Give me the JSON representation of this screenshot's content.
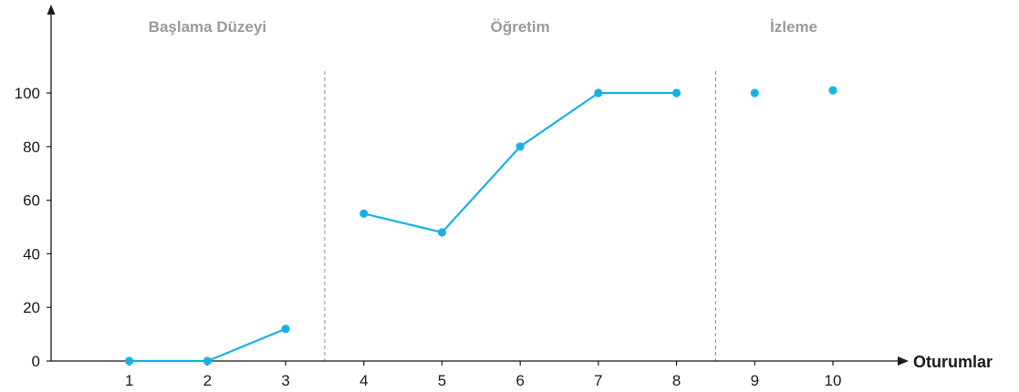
{
  "chart_data": {
    "type": "line",
    "xlabel": "Oturumlar",
    "ylabel": "",
    "x_ticks": [
      "1",
      "2",
      "3",
      "4",
      "5",
      "6",
      "7",
      "8",
      "9",
      "10"
    ],
    "y_ticks": [
      "0",
      "20",
      "40",
      "60",
      "80",
      "100"
    ],
    "xlim": [
      0,
      10
    ],
    "ylim": [
      0,
      100
    ],
    "grid": false,
    "series_color": "#1ab0e6",
    "phases": [
      {
        "label": "Başlama Düzeyi",
        "sessions": [
          1,
          3
        ]
      },
      {
        "label": "Öğretim",
        "sessions": [
          4,
          8
        ]
      },
      {
        "label": "İzleme",
        "sessions": [
          9,
          10
        ]
      }
    ],
    "phase_dividers": [
      3.5,
      8.5
    ],
    "segments": [
      {
        "phase": "Başlama Düzeyi",
        "points": [
          {
            "x": 1,
            "y": 0
          },
          {
            "x": 2,
            "y": 0
          },
          {
            "x": 3,
            "y": 12
          }
        ]
      },
      {
        "phase": "Öğretim",
        "points": [
          {
            "x": 4,
            "y": 55
          },
          {
            "x": 5,
            "y": 48
          },
          {
            "x": 6,
            "y": 80
          },
          {
            "x": 7,
            "y": 100
          },
          {
            "x": 8,
            "y": 100
          }
        ]
      },
      {
        "phase": "İzleme",
        "connected": false,
        "points": [
          {
            "x": 9,
            "y": 100
          },
          {
            "x": 10,
            "y": 101
          }
        ]
      }
    ]
  }
}
